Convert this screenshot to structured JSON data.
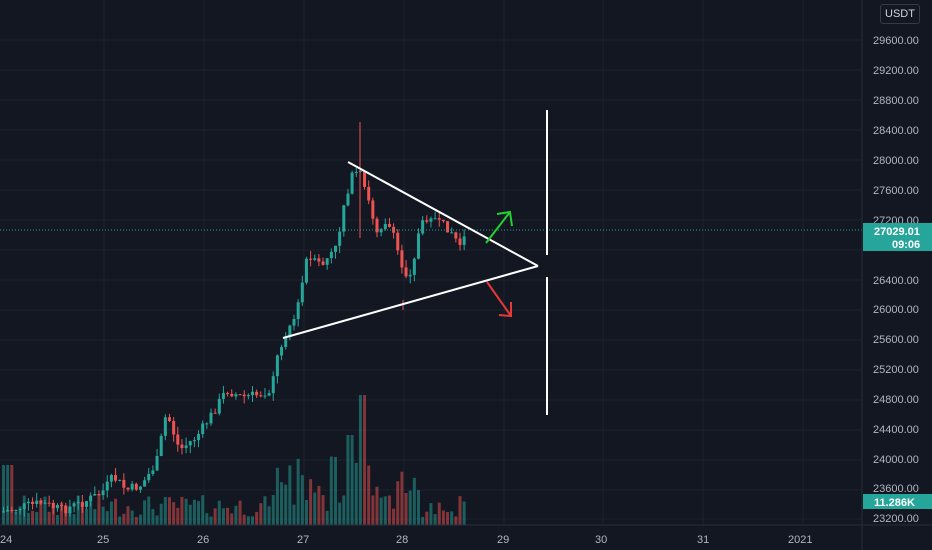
{
  "header": {
    "currency": "USDT"
  },
  "colors": {
    "up": "#26a69a",
    "down": "#ef5350",
    "background": "#131722",
    "grid": "#1e222d",
    "drawing": "#ffffff"
  },
  "chart_data": {
    "type": "candlestick",
    "ylim": [
      23150,
      30300
    ],
    "price_ticks": [
      "29600.00",
      "29200.00",
      "28800.00",
      "28400.00",
      "28000.00",
      "27600.00",
      "27200.00",
      "26400.00",
      "26000.00",
      "25600.00",
      "25200.00",
      "24800.00",
      "24400.00",
      "24000.00",
      "23600.00",
      "23200.00"
    ],
    "time_ticks": [
      "24",
      "25",
      "26",
      "27",
      "28",
      "29",
      "30",
      "31",
      "2021"
    ],
    "last_price": "27029.01",
    "countdown": "09:06",
    "volume_label": "11.286K",
    "annotations": [
      "symmetrical triangle",
      "breakout up arrow",
      "breakdown down arrow",
      "vertical range line"
    ]
  }
}
